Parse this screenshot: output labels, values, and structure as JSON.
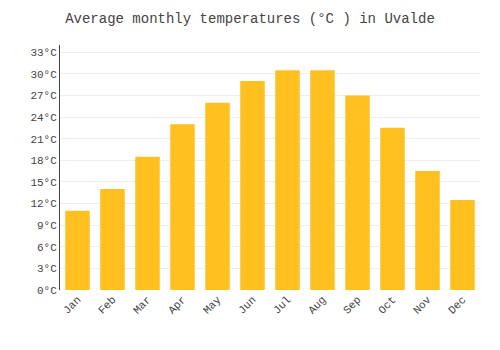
{
  "chart_data": {
    "type": "bar",
    "title": "Average monthly temperatures (°C ) in Uvalde",
    "categories": [
      "Jan",
      "Feb",
      "Mar",
      "Apr",
      "May",
      "Jun",
      "Jul",
      "Aug",
      "Sep",
      "Oct",
      "Nov",
      "Dec"
    ],
    "values": [
      11,
      14,
      18.5,
      23,
      26,
      29,
      30.5,
      30.5,
      27,
      22.5,
      16.5,
      12.5
    ],
    "color": "#FFC020",
    "ylim": [
      0,
      34
    ],
    "yticks": [
      {
        "value": 0,
        "label": "0°C"
      },
      {
        "value": 3,
        "label": "3°C"
      },
      {
        "value": 6,
        "label": "6°C"
      },
      {
        "value": 9,
        "label": "9°C"
      },
      {
        "value": 12,
        "label": "12°C"
      },
      {
        "value": 15,
        "label": "15°C"
      },
      {
        "value": 18,
        "label": "18°C"
      },
      {
        "value": 21,
        "label": "21°C"
      },
      {
        "value": 24,
        "label": "24°C"
      },
      {
        "value": 27,
        "label": "27°C"
      },
      {
        "value": 30,
        "label": "30°C"
      },
      {
        "value": 33,
        "label": "33°C"
      }
    ],
    "grid": true
  }
}
